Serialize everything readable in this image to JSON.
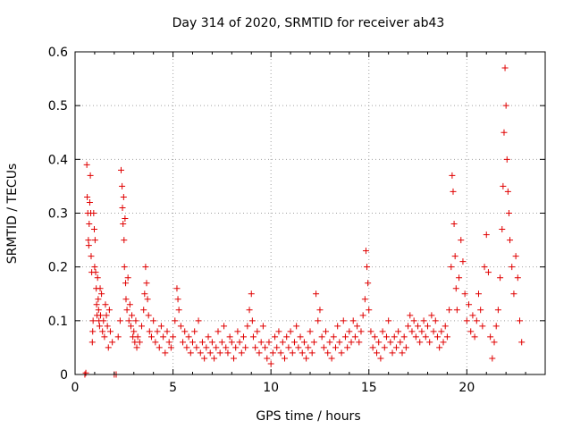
{
  "chart_data": {
    "type": "scatter",
    "title": "Day 314 of 2020, SRMTID for receiver ab43",
    "xlabel": "GPS time / hours",
    "ylabel": "SRMTID / TECUs",
    "xlim": [
      0,
      24
    ],
    "ylim": [
      0,
      0.6
    ],
    "xticks": [
      0,
      5,
      10,
      15,
      20
    ],
    "yticks": [
      0,
      0.1,
      0.2,
      0.3,
      0.4,
      0.5,
      0.6
    ],
    "ytick_labels": [
      "0",
      "0.1",
      "0.2",
      "0.3",
      "0.4",
      "0.5",
      "0.6"
    ],
    "grid": true,
    "marker": "+",
    "color": "#e00000",
    "series": [
      {
        "name": "SRMTID",
        "points": [
          [
            0.5,
            0.0
          ],
          [
            0.55,
            0.003
          ],
          [
            0.6,
            0.39
          ],
          [
            0.62,
            0.33
          ],
          [
            0.65,
            0.3
          ],
          [
            0.68,
            0.25
          ],
          [
            0.7,
            0.24
          ],
          [
            0.72,
            0.28
          ],
          [
            0.75,
            0.32
          ],
          [
            0.78,
            0.37
          ],
          [
            0.8,
            0.3
          ],
          [
            0.82,
            0.22
          ],
          [
            0.85,
            0.19
          ],
          [
            0.88,
            0.06
          ],
          [
            0.9,
            0.08
          ],
          [
            0.92,
            0.1
          ],
          [
            0.95,
            0.3
          ],
          [
            0.98,
            0.27
          ],
          [
            1.0,
            0.2
          ],
          [
            1.02,
            0.25
          ],
          [
            1.05,
            0.19
          ],
          [
            1.08,
            0.16
          ],
          [
            1.1,
            0.13
          ],
          [
            1.12,
            0.11
          ],
          [
            1.15,
            0.18
          ],
          [
            1.18,
            0.14
          ],
          [
            1.2,
            0.12
          ],
          [
            1.22,
            0.1
          ],
          [
            1.25,
            0.09
          ],
          [
            1.28,
            0.16
          ],
          [
            1.3,
            0.11
          ],
          [
            1.35,
            0.15
          ],
          [
            1.4,
            0.08
          ],
          [
            1.45,
            0.1
          ],
          [
            1.5,
            0.07
          ],
          [
            1.55,
            0.13
          ],
          [
            1.6,
            0.11
          ],
          [
            1.65,
            0.09
          ],
          [
            1.7,
            0.05
          ],
          [
            1.75,
            0.12
          ],
          [
            1.8,
            0.08
          ],
          [
            1.9,
            0.06
          ],
          [
            2.0,
            0.0
          ],
          [
            2.1,
            0.0
          ],
          [
            2.2,
            0.07
          ],
          [
            2.3,
            0.1
          ],
          [
            2.35,
            0.38
          ],
          [
            2.4,
            0.35
          ],
          [
            2.42,
            0.31
          ],
          [
            2.45,
            0.28
          ],
          [
            2.48,
            0.33
          ],
          [
            2.5,
            0.25
          ],
          [
            2.52,
            0.2
          ],
          [
            2.55,
            0.29
          ],
          [
            2.58,
            0.17
          ],
          [
            2.6,
            0.14
          ],
          [
            2.65,
            0.12
          ],
          [
            2.7,
            0.18
          ],
          [
            2.75,
            0.1
          ],
          [
            2.8,
            0.13
          ],
          [
            2.85,
            0.09
          ],
          [
            2.9,
            0.11
          ],
          [
            2.95,
            0.07
          ],
          [
            3.0,
            0.08
          ],
          [
            3.05,
            0.06
          ],
          [
            3.1,
            0.1
          ],
          [
            3.15,
            0.05
          ],
          [
            3.2,
            0.07
          ],
          [
            3.3,
            0.06
          ],
          [
            3.4,
            0.09
          ],
          [
            3.5,
            0.12
          ],
          [
            3.55,
            0.15
          ],
          [
            3.6,
            0.2
          ],
          [
            3.65,
            0.17
          ],
          [
            3.7,
            0.14
          ],
          [
            3.75,
            0.11
          ],
          [
            3.8,
            0.08
          ],
          [
            3.9,
            0.07
          ],
          [
            4.0,
            0.1
          ],
          [
            4.1,
            0.06
          ],
          [
            4.2,
            0.08
          ],
          [
            4.3,
            0.05
          ],
          [
            4.4,
            0.09
          ],
          [
            4.5,
            0.07
          ],
          [
            4.6,
            0.04
          ],
          [
            4.7,
            0.08
          ],
          [
            4.8,
            0.06
          ],
          [
            4.9,
            0.05
          ],
          [
            5.0,
            0.07
          ],
          [
            5.1,
            0.1
          ],
          [
            5.2,
            0.16
          ],
          [
            5.25,
            0.14
          ],
          [
            5.3,
            0.12
          ],
          [
            5.4,
            0.09
          ],
          [
            5.5,
            0.06
          ],
          [
            5.6,
            0.08
          ],
          [
            5.7,
            0.05
          ],
          [
            5.8,
            0.07
          ],
          [
            5.9,
            0.04
          ],
          [
            6.0,
            0.06
          ],
          [
            6.1,
            0.08
          ],
          [
            6.2,
            0.05
          ],
          [
            6.3,
            0.1
          ],
          [
            6.4,
            0.04
          ],
          [
            6.5,
            0.06
          ],
          [
            6.6,
            0.03
          ],
          [
            6.7,
            0.05
          ],
          [
            6.8,
            0.07
          ],
          [
            6.9,
            0.04
          ],
          [
            7.0,
            0.06
          ],
          [
            7.1,
            0.03
          ],
          [
            7.2,
            0.05
          ],
          [
            7.3,
            0.08
          ],
          [
            7.4,
            0.04
          ],
          [
            7.5,
            0.06
          ],
          [
            7.6,
            0.09
          ],
          [
            7.7,
            0.05
          ],
          [
            7.8,
            0.04
          ],
          [
            7.9,
            0.07
          ],
          [
            8.0,
            0.06
          ],
          [
            8.1,
            0.03
          ],
          [
            8.2,
            0.05
          ],
          [
            8.3,
            0.08
          ],
          [
            8.4,
            0.06
          ],
          [
            8.5,
            0.04
          ],
          [
            8.6,
            0.07
          ],
          [
            8.7,
            0.05
          ],
          [
            8.8,
            0.09
          ],
          [
            8.9,
            0.12
          ],
          [
            9.0,
            0.15
          ],
          [
            9.05,
            0.1
          ],
          [
            9.1,
            0.07
          ],
          [
            9.2,
            0.05
          ],
          [
            9.3,
            0.08
          ],
          [
            9.4,
            0.04
          ],
          [
            9.5,
            0.06
          ],
          [
            9.6,
            0.09
          ],
          [
            9.7,
            0.05
          ],
          [
            9.8,
            0.03
          ],
          [
            9.9,
            0.06
          ],
          [
            10.0,
            0.02
          ],
          [
            10.1,
            0.04
          ],
          [
            10.2,
            0.07
          ],
          [
            10.3,
            0.05
          ],
          [
            10.4,
            0.08
          ],
          [
            10.5,
            0.04
          ],
          [
            10.6,
            0.06
          ],
          [
            10.7,
            0.03
          ],
          [
            10.8,
            0.07
          ],
          [
            10.9,
            0.05
          ],
          [
            11.0,
            0.08
          ],
          [
            11.1,
            0.04
          ],
          [
            11.2,
            0.06
          ],
          [
            11.3,
            0.09
          ],
          [
            11.4,
            0.05
          ],
          [
            11.5,
            0.07
          ],
          [
            11.6,
            0.04
          ],
          [
            11.7,
            0.06
          ],
          [
            11.8,
            0.03
          ],
          [
            11.9,
            0.05
          ],
          [
            12.0,
            0.08
          ],
          [
            12.1,
            0.04
          ],
          [
            12.2,
            0.06
          ],
          [
            12.3,
            0.15
          ],
          [
            12.4,
            0.1
          ],
          [
            12.5,
            0.12
          ],
          [
            12.6,
            0.07
          ],
          [
            12.7,
            0.05
          ],
          [
            12.8,
            0.08
          ],
          [
            12.9,
            0.04
          ],
          [
            13.0,
            0.06
          ],
          [
            13.1,
            0.03
          ],
          [
            13.2,
            0.07
          ],
          [
            13.3,
            0.05
          ],
          [
            13.4,
            0.09
          ],
          [
            13.5,
            0.06
          ],
          [
            13.6,
            0.04
          ],
          [
            13.7,
            0.1
          ],
          [
            13.8,
            0.07
          ],
          [
            13.9,
            0.05
          ],
          [
            14.0,
            0.08
          ],
          [
            14.1,
            0.06
          ],
          [
            14.2,
            0.1
          ],
          [
            14.3,
            0.07
          ],
          [
            14.4,
            0.09
          ],
          [
            14.5,
            0.06
          ],
          [
            14.6,
            0.08
          ],
          [
            14.7,
            0.11
          ],
          [
            14.8,
            0.14
          ],
          [
            14.85,
            0.23
          ],
          [
            14.9,
            0.2
          ],
          [
            14.95,
            0.17
          ],
          [
            15.0,
            0.12
          ],
          [
            15.1,
            0.08
          ],
          [
            15.2,
            0.05
          ],
          [
            15.3,
            0.07
          ],
          [
            15.4,
            0.04
          ],
          [
            15.5,
            0.06
          ],
          [
            15.6,
            0.03
          ],
          [
            15.7,
            0.08
          ],
          [
            15.8,
            0.05
          ],
          [
            15.9,
            0.07
          ],
          [
            16.0,
            0.1
          ],
          [
            16.1,
            0.06
          ],
          [
            16.2,
            0.04
          ],
          [
            16.3,
            0.07
          ],
          [
            16.4,
            0.05
          ],
          [
            16.5,
            0.08
          ],
          [
            16.6,
            0.06
          ],
          [
            16.7,
            0.04
          ],
          [
            16.8,
            0.07
          ],
          [
            16.9,
            0.05
          ],
          [
            17.0,
            0.09
          ],
          [
            17.1,
            0.11
          ],
          [
            17.2,
            0.08
          ],
          [
            17.3,
            0.1
          ],
          [
            17.4,
            0.07
          ],
          [
            17.5,
            0.09
          ],
          [
            17.6,
            0.06
          ],
          [
            17.7,
            0.08
          ],
          [
            17.8,
            0.1
          ],
          [
            17.9,
            0.07
          ],
          [
            18.0,
            0.09
          ],
          [
            18.1,
            0.06
          ],
          [
            18.2,
            0.11
          ],
          [
            18.3,
            0.08
          ],
          [
            18.4,
            0.1
          ],
          [
            18.5,
            0.07
          ],
          [
            18.6,
            0.05
          ],
          [
            18.7,
            0.08
          ],
          [
            18.8,
            0.06
          ],
          [
            18.9,
            0.09
          ],
          [
            19.0,
            0.07
          ],
          [
            19.1,
            0.12
          ],
          [
            19.2,
            0.2
          ],
          [
            19.25,
            0.37
          ],
          [
            19.3,
            0.34
          ],
          [
            19.35,
            0.28
          ],
          [
            19.4,
            0.22
          ],
          [
            19.45,
            0.16
          ],
          [
            19.5,
            0.12
          ],
          [
            19.6,
            0.18
          ],
          [
            19.7,
            0.25
          ],
          [
            19.8,
            0.21
          ],
          [
            19.9,
            0.15
          ],
          [
            20.0,
            0.1
          ],
          [
            20.1,
            0.13
          ],
          [
            20.2,
            0.08
          ],
          [
            20.3,
            0.11
          ],
          [
            20.4,
            0.07
          ],
          [
            20.5,
            0.1
          ],
          [
            20.6,
            0.15
          ],
          [
            20.7,
            0.12
          ],
          [
            20.8,
            0.09
          ],
          [
            20.9,
            0.2
          ],
          [
            21.0,
            0.26
          ],
          [
            21.1,
            0.19
          ],
          [
            21.2,
            0.07
          ],
          [
            21.3,
            0.03
          ],
          [
            21.4,
            0.06
          ],
          [
            21.5,
            0.09
          ],
          [
            21.6,
            0.12
          ],
          [
            21.7,
            0.18
          ],
          [
            21.8,
            0.27
          ],
          [
            21.85,
            0.35
          ],
          [
            21.9,
            0.45
          ],
          [
            21.95,
            0.57
          ],
          [
            22.0,
            0.5
          ],
          [
            22.05,
            0.4
          ],
          [
            22.1,
            0.34
          ],
          [
            22.15,
            0.3
          ],
          [
            22.2,
            0.25
          ],
          [
            22.3,
            0.2
          ],
          [
            22.4,
            0.15
          ],
          [
            22.5,
            0.22
          ],
          [
            22.6,
            0.18
          ],
          [
            22.7,
            0.1
          ],
          [
            22.8,
            0.06
          ]
        ]
      }
    ]
  }
}
